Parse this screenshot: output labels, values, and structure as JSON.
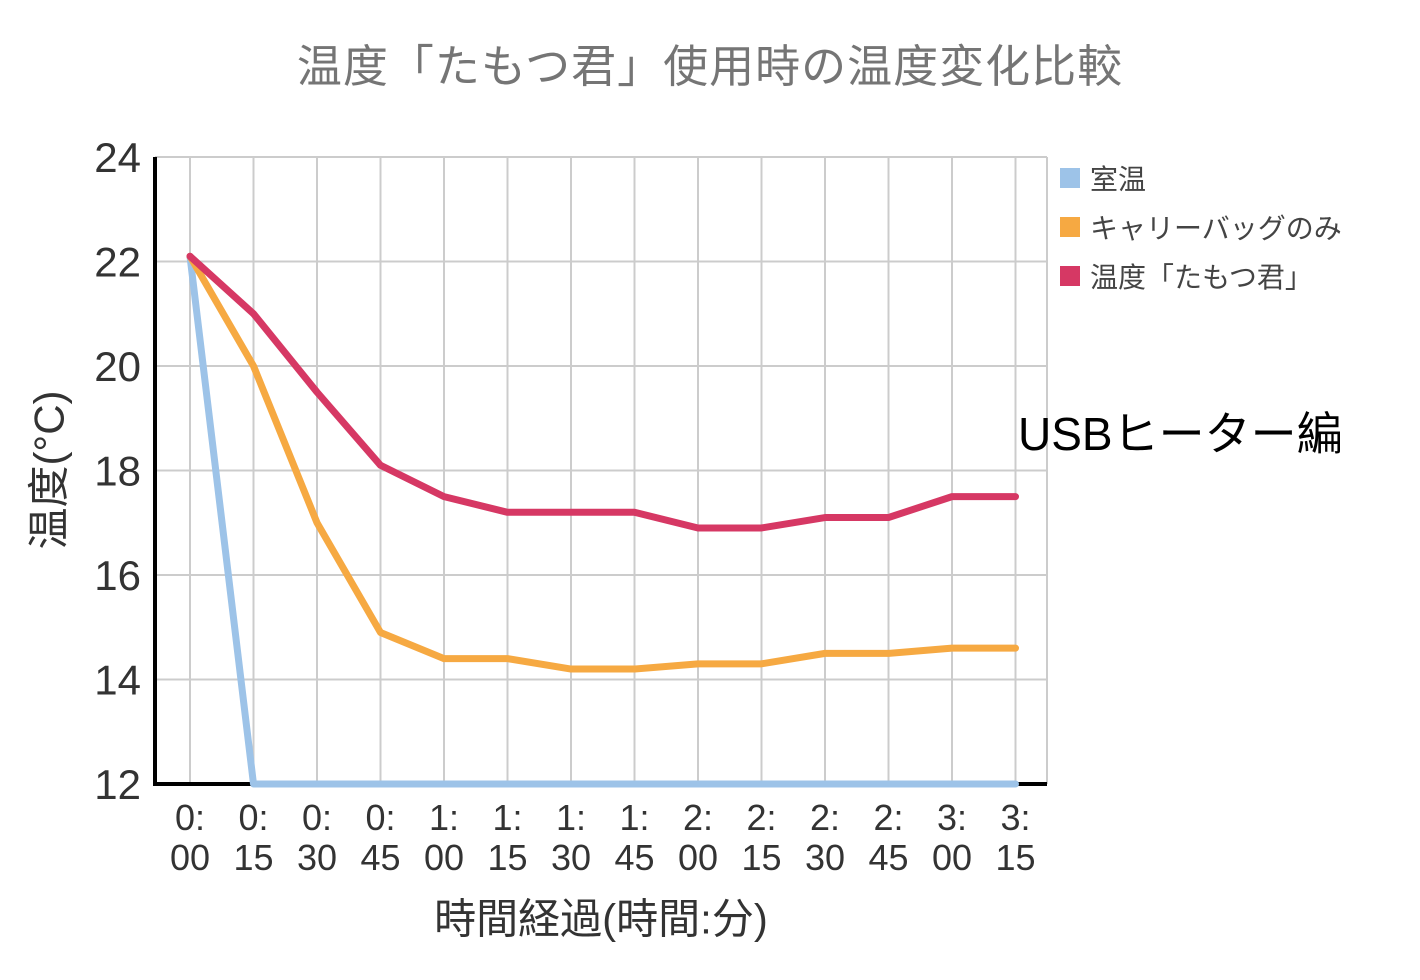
{
  "chart_data": {
    "type": "line",
    "title": "温度「たもつ君」使用時の温度変化比較",
    "xlabel": "時間経過(時間:分)",
    "ylabel": "温度(°C)",
    "annotation": "USBヒーター編",
    "ylim": [
      12,
      24
    ],
    "yticks": [
      12,
      14,
      16,
      18,
      20,
      22,
      24
    ],
    "grid": true,
    "legend_position": "right",
    "categories": [
      "0:00",
      "0:15",
      "0:30",
      "0:45",
      "1:00",
      "1:15",
      "1:30",
      "1:45",
      "2:00",
      "2:15",
      "2:30",
      "2:45",
      "3:00",
      "3:15"
    ],
    "series": [
      {
        "name": "室温",
        "color": "#9dc3e8",
        "values": [
          22.1,
          12,
          12,
          12,
          12,
          12,
          12,
          12,
          12,
          12,
          12,
          12,
          12,
          12
        ]
      },
      {
        "name": "キャリーバッグのみ",
        "color": "#f6a942",
        "values": [
          22.1,
          20.0,
          17.0,
          14.9,
          14.4,
          14.4,
          14.2,
          14.2,
          14.3,
          14.3,
          14.5,
          14.5,
          14.6,
          14.6
        ]
      },
      {
        "name": "温度「たもつ君」",
        "color": "#d63864",
        "values": [
          22.1,
          21.0,
          19.5,
          18.1,
          17.5,
          17.2,
          17.2,
          17.2,
          16.9,
          16.9,
          17.1,
          17.1,
          17.5,
          17.5
        ]
      }
    ],
    "colors": {
      "title_text": "#757575",
      "axis_text": "#333333",
      "axis_line": "#000000",
      "gridline": "#cccccc"
    }
  }
}
